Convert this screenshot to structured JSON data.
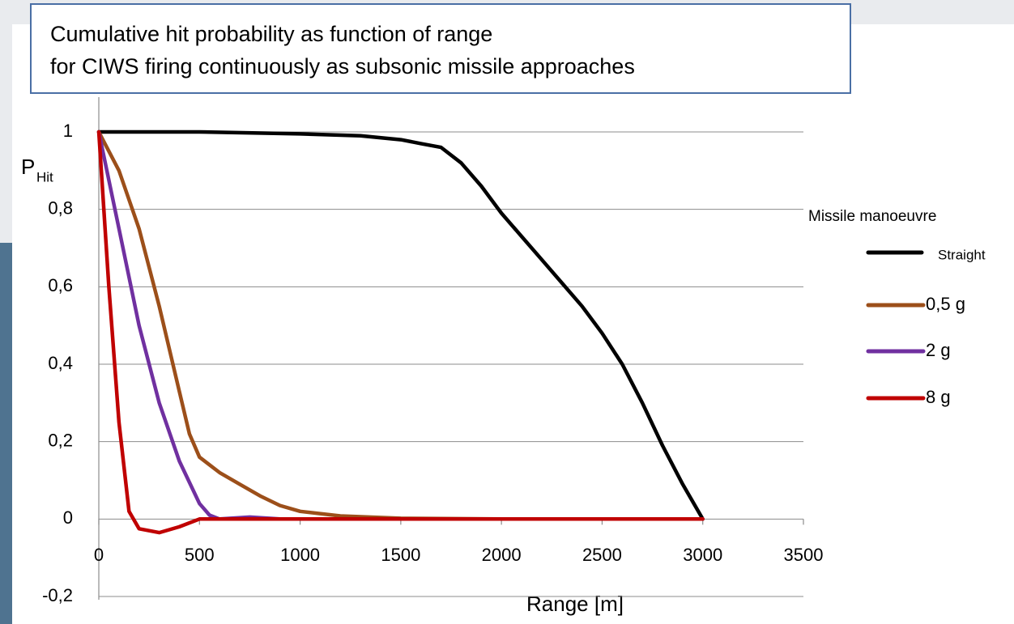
{
  "chart_data": {
    "type": "line",
    "title": [
      "Cumulative hit probability as function of range",
      "for CIWS firing continuously as subsonic missile approaches"
    ],
    "ylabel": {
      "main": "P",
      "sub": "Hit"
    },
    "xlabel": "Range [m]",
    "legend_title": "Missile manoeuvre",
    "legend": "right",
    "grid": true,
    "xlim": [
      0,
      3500
    ],
    "xticks": [
      0,
      500,
      1000,
      1500,
      2000,
      2500,
      3000,
      3500
    ],
    "ylim": [
      -0.2,
      1
    ],
    "yticks": [
      {
        "value": -0.2,
        "label": "-0,2"
      },
      0,
      {
        "value": 0.2,
        "label": "0,2"
      },
      {
        "value": 0.4,
        "label": "0,4"
      },
      {
        "value": 0.6,
        "label": "0,6"
      },
      {
        "value": 0.8,
        "label": "0,8"
      },
      1
    ],
    "series": [
      {
        "name": "Straight",
        "color": "#000000",
        "x": [
          0,
          500,
          1000,
          1300,
          1500,
          1600,
          1700,
          1800,
          1900,
          2000,
          2100,
          2200,
          2300,
          2400,
          2500,
          2600,
          2700,
          2800,
          2900,
          3000
        ],
        "values": [
          1,
          1,
          0.995,
          0.99,
          0.98,
          0.97,
          0.96,
          0.92,
          0.86,
          0.79,
          0.73,
          0.67,
          0.61,
          0.55,
          0.48,
          0.4,
          0.3,
          0.19,
          0.09,
          0
        ]
      },
      {
        "name": "0,5 g",
        "color": "#9c4f1a",
        "x": [
          0,
          100,
          200,
          300,
          400,
          450,
          500,
          600,
          700,
          800,
          900,
          1000,
          1200,
          1500,
          2000,
          3000
        ],
        "values": [
          1,
          0.9,
          0.75,
          0.55,
          0.33,
          0.22,
          0.16,
          0.12,
          0.09,
          0.06,
          0.035,
          0.02,
          0.008,
          0.002,
          0,
          0
        ]
      },
      {
        "name": "2 g",
        "color": "#7030a0",
        "x": [
          0,
          100,
          200,
          300,
          400,
          500,
          550,
          600,
          750,
          900,
          3000
        ],
        "values": [
          1,
          0.75,
          0.5,
          0.3,
          0.15,
          0.04,
          0.01,
          0,
          0.005,
          0,
          0
        ]
      },
      {
        "name": "8 g",
        "color": "#c00000",
        "x": [
          0,
          50,
          100,
          150,
          200,
          300,
          400,
          500,
          600,
          3000
        ],
        "values": [
          1,
          0.6,
          0.25,
          0.02,
          -0.025,
          -0.035,
          -0.02,
          0,
          0,
          0
        ]
      }
    ]
  }
}
